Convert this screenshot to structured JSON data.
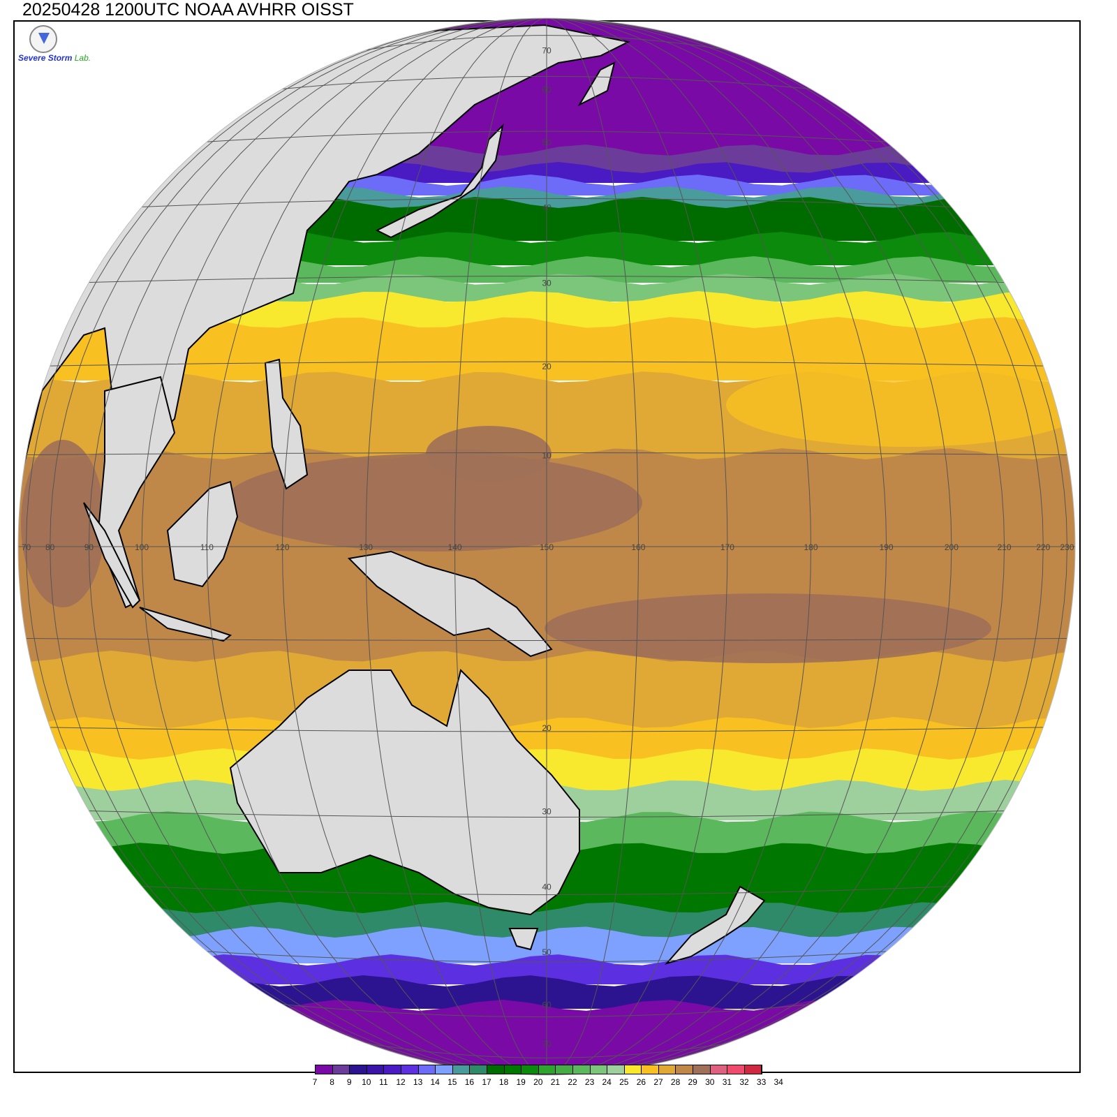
{
  "title": "20250428 1200UTC NOAA AVHRR OISST",
  "logo": {
    "line1": "Severe Storm",
    "line2": "Lab."
  },
  "map": {
    "projection": "orthographic",
    "center_lon": 150,
    "center_lat": 0,
    "lon_labels": [
      "70",
      "80",
      "90",
      "100",
      "110",
      "120",
      "130",
      "140",
      "150",
      "160",
      "170",
      "180",
      "190",
      "200",
      "210",
      "220",
      "230"
    ],
    "lon_values": [
      70,
      80,
      90,
      100,
      110,
      120,
      130,
      140,
      150,
      160,
      170,
      180,
      190,
      200,
      210,
      220,
      230
    ],
    "lat_labels": [
      "70",
      "60",
      "50",
      "40",
      "30",
      "20",
      "10",
      "20",
      "30",
      "40",
      "50",
      "60",
      "70"
    ],
    "lat_values": [
      70,
      60,
      50,
      40,
      30,
      20,
      10,
      -20,
      -30,
      -40,
      -50,
      -60,
      -70
    ],
    "land_color": "#dcdcdc"
  },
  "colorbar": {
    "labels": [
      "7",
      "8",
      "9",
      "10",
      "11",
      "12",
      "13",
      "14",
      "15",
      "16",
      "17",
      "18",
      "19",
      "20",
      "21",
      "22",
      "23",
      "24",
      "25",
      "26",
      "27",
      "28",
      "29",
      "30",
      "31",
      "32",
      "33",
      "34"
    ],
    "colors": [
      "#7a0aa6",
      "#6c3c9a",
      "#2c1490",
      "#3a14a8",
      "#4a1ac2",
      "#5c30e0",
      "#6c6cf8",
      "#7ea0ff",
      "#4a9c9c",
      "#2e8a68",
      "#006c00",
      "#007800",
      "#0c8a0c",
      "#2ea42e",
      "#46ac46",
      "#5cb85c",
      "#7cc67c",
      "#9ed09e",
      "#f8e82e",
      "#f8c020",
      "#e0a834",
      "#c08848",
      "#a07058",
      "#e06080",
      "#f04a6e",
      "#d02840"
    ]
  }
}
